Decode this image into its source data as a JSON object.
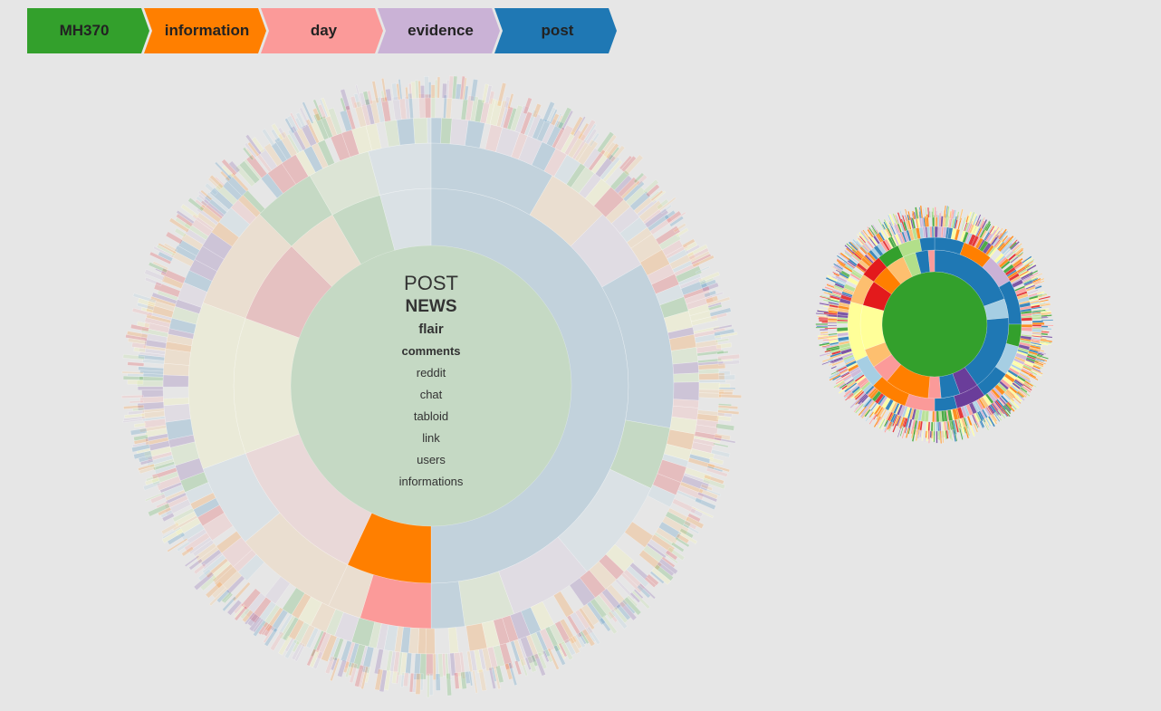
{
  "breadcrumb": [
    {
      "label": "MH370",
      "color": "#33a02c"
    },
    {
      "label": "information",
      "color": "#ff7f00"
    },
    {
      "label": "day",
      "color": "#fb9a99"
    },
    {
      "label": "evidence",
      "color": "#cab2d6"
    },
    {
      "label": "post",
      "color": "#1f78b4"
    }
  ],
  "palette": [
    "#a6cee3",
    "#1f78b4",
    "#b2df8a",
    "#33a02c",
    "#fb9a99",
    "#e31a1c",
    "#fdbf6f",
    "#ff7f00",
    "#cab2d6",
    "#6a3d9a",
    "#ffff99"
  ],
  "chart_data": {
    "type": "sunburst",
    "title": "",
    "center_terms": [
      {
        "term": "POST",
        "size": 22,
        "weight": "normal"
      },
      {
        "term": "NEWS",
        "size": 19,
        "weight": "bold"
      },
      {
        "term": "flair",
        "size": 15,
        "weight": "bold"
      },
      {
        "term": "comments",
        "size": 13,
        "weight": "bold"
      },
      {
        "term": "reddit",
        "size": 13,
        "weight": "normal"
      },
      {
        "term": "chat",
        "size": 13,
        "weight": "normal"
      },
      {
        "term": "tabloid",
        "size": 13,
        "weight": "normal"
      },
      {
        "term": "link",
        "size": 13,
        "weight": "normal"
      },
      {
        "term": "users",
        "size": 13,
        "weight": "normal"
      },
      {
        "term": "informations",
        "size": 13,
        "weight": "normal"
      }
    ],
    "main_rings": [
      [
        {
          "start": 0,
          "end": 180,
          "color": "#1f78b4",
          "highlight": false
        },
        {
          "start": 180,
          "end": 205,
          "color": "#ff7f00",
          "highlight": true
        },
        {
          "start": 205,
          "end": 250,
          "color": "#fb9a99",
          "highlight": false
        },
        {
          "start": 250,
          "end": 290,
          "color": "#ffff99",
          "highlight": false
        },
        {
          "start": 290,
          "end": 315,
          "color": "#e31a1c",
          "highlight": false
        },
        {
          "start": 315,
          "end": 330,
          "color": "#fdbf6f",
          "highlight": false
        },
        {
          "start": 330,
          "end": 345,
          "color": "#33a02c",
          "highlight": false
        },
        {
          "start": 345,
          "end": 360,
          "color": "#a6cee3",
          "highlight": false
        }
      ],
      [
        {
          "start": 0,
          "end": 30,
          "color": "#1f78b4",
          "highlight": false
        },
        {
          "start": 30,
          "end": 45,
          "color": "#fdbf6f",
          "highlight": false
        },
        {
          "start": 45,
          "end": 60,
          "color": "#cab2d6",
          "highlight": false
        },
        {
          "start": 60,
          "end": 100,
          "color": "#1f78b4",
          "highlight": false
        },
        {
          "start": 100,
          "end": 115,
          "color": "#33a02c",
          "highlight": false
        },
        {
          "start": 115,
          "end": 140,
          "color": "#a6cee3",
          "highlight": false
        },
        {
          "start": 140,
          "end": 160,
          "color": "#cab2d6",
          "highlight": false
        },
        {
          "start": 160,
          "end": 172,
          "color": "#b2df8a",
          "highlight": false
        },
        {
          "start": 172,
          "end": 180,
          "color": "#1f78b4",
          "highlight": false
        },
        {
          "start": 180,
          "end": 197,
          "color": "#fb9a99",
          "highlight": true
        },
        {
          "start": 197,
          "end": 205,
          "color": "#fdbf6f",
          "highlight": false
        },
        {
          "start": 205,
          "end": 230,
          "color": "#fdbf6f",
          "highlight": false
        },
        {
          "start": 230,
          "end": 250,
          "color": "#a6cee3",
          "highlight": false
        },
        {
          "start": 250,
          "end": 290,
          "color": "#ffff99",
          "highlight": false
        },
        {
          "start": 290,
          "end": 315,
          "color": "#fdbf6f",
          "highlight": false
        },
        {
          "start": 315,
          "end": 330,
          "color": "#33a02c",
          "highlight": false
        },
        {
          "start": 330,
          "end": 345,
          "color": "#b2df8a",
          "highlight": false
        },
        {
          "start": 345,
          "end": 360,
          "color": "#a6cee3",
          "highlight": false
        }
      ]
    ],
    "mini_rings": [
      [
        {
          "start": 0,
          "end": 70,
          "color": "#1f78b4"
        },
        {
          "start": 70,
          "end": 85,
          "color": "#a6cee3"
        },
        {
          "start": 85,
          "end": 145,
          "color": "#1f78b4"
        },
        {
          "start": 145,
          "end": 160,
          "color": "#6a3d9a"
        },
        {
          "start": 160,
          "end": 175,
          "color": "#1f78b4"
        },
        {
          "start": 175,
          "end": 185,
          "color": "#fb9a99"
        },
        {
          "start": 185,
          "end": 220,
          "color": "#ff7f00"
        },
        {
          "start": 220,
          "end": 235,
          "color": "#fb9a99"
        },
        {
          "start": 235,
          "end": 250,
          "color": "#fdbf6f"
        },
        {
          "start": 250,
          "end": 285,
          "color": "#ffff99"
        },
        {
          "start": 285,
          "end": 305,
          "color": "#e31a1c"
        },
        {
          "start": 305,
          "end": 320,
          "color": "#ff7f00"
        },
        {
          "start": 320,
          "end": 335,
          "color": "#fdbf6f"
        },
        {
          "start": 335,
          "end": 345,
          "color": "#b2df8a"
        },
        {
          "start": 345,
          "end": 355,
          "color": "#1f78b4"
        },
        {
          "start": 355,
          "end": 360,
          "color": "#fb9a99"
        }
      ],
      [
        {
          "start": 0,
          "end": 20,
          "color": "#1f78b4"
        },
        {
          "start": 20,
          "end": 40,
          "color": "#ff7f00"
        },
        {
          "start": 40,
          "end": 60,
          "color": "#cab2d6"
        },
        {
          "start": 60,
          "end": 90,
          "color": "#1f78b4"
        },
        {
          "start": 90,
          "end": 105,
          "color": "#33a02c"
        },
        {
          "start": 105,
          "end": 125,
          "color": "#a6cee3"
        },
        {
          "start": 125,
          "end": 145,
          "color": "#1f78b4"
        },
        {
          "start": 145,
          "end": 165,
          "color": "#6a3d9a"
        },
        {
          "start": 165,
          "end": 180,
          "color": "#1f78b4"
        },
        {
          "start": 180,
          "end": 200,
          "color": "#fb9a99"
        },
        {
          "start": 200,
          "end": 225,
          "color": "#ff7f00"
        },
        {
          "start": 225,
          "end": 245,
          "color": "#a6cee3"
        },
        {
          "start": 245,
          "end": 285,
          "color": "#ffff99"
        },
        {
          "start": 285,
          "end": 305,
          "color": "#fdbf6f"
        },
        {
          "start": 305,
          "end": 320,
          "color": "#e31a1c"
        },
        {
          "start": 320,
          "end": 335,
          "color": "#33a02c"
        },
        {
          "start": 335,
          "end": 350,
          "color": "#b2df8a"
        },
        {
          "start": 350,
          "end": 360,
          "color": "#1f78b4"
        }
      ]
    ]
  }
}
